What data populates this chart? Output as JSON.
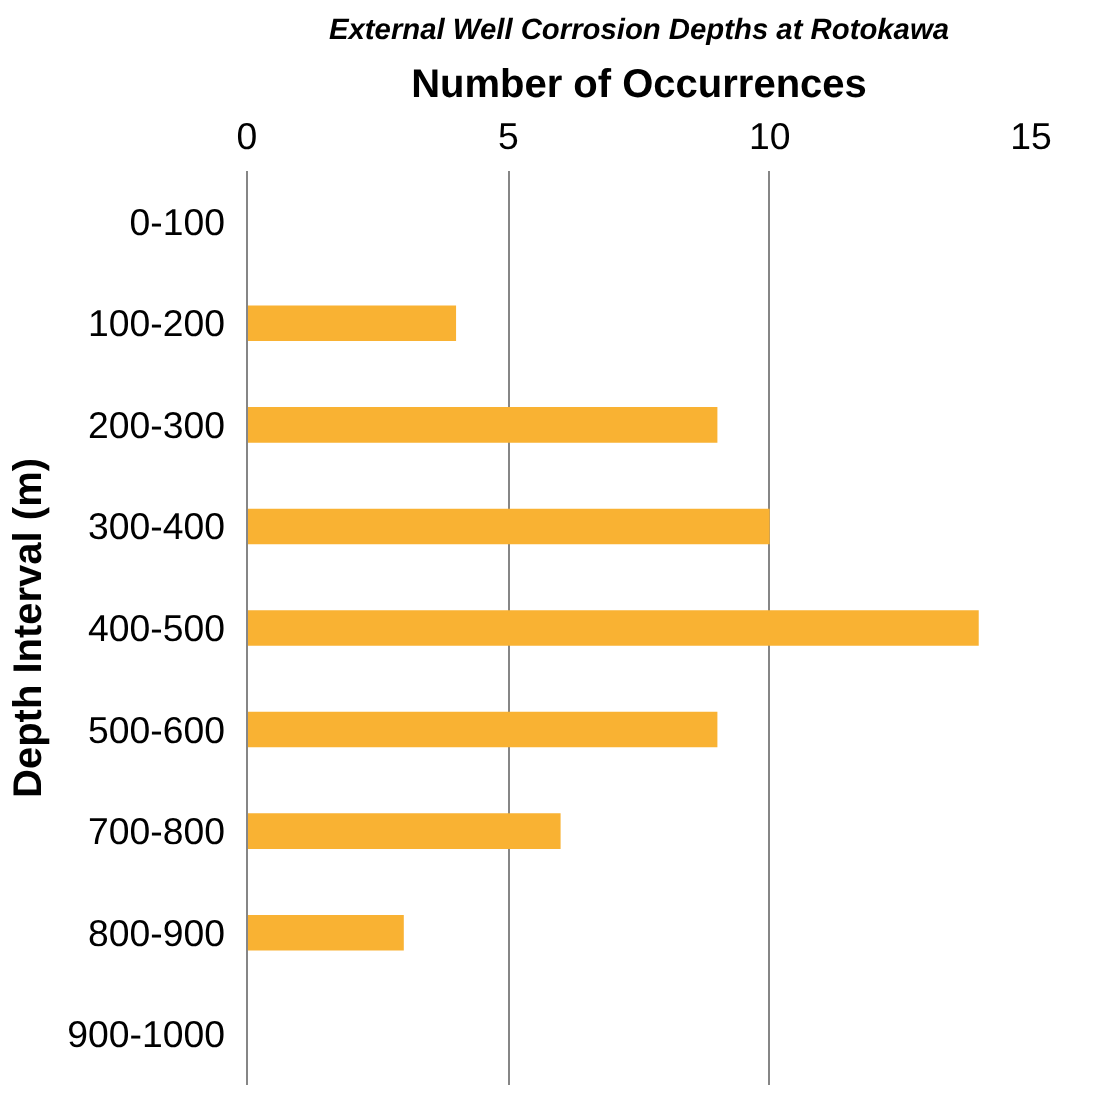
{
  "chart_data": {
    "type": "bar",
    "orientation": "horizontal",
    "title": "External Well Corrosion Depths at Rotokawa",
    "xlabel": "Number of Occurrences",
    "ylabel": "Depth Interval (m)",
    "categories": [
      "0-100",
      "100-200",
      "200-300",
      "300-400",
      "400-500",
      "500-600",
      "700-800",
      "800-900",
      "900-1000"
    ],
    "values": [
      0,
      4,
      9,
      10,
      14,
      9,
      6,
      3,
      0
    ],
    "color": "#f9b233",
    "xlim": [
      0,
      15
    ],
    "xticks": [
      0,
      5,
      10,
      15
    ],
    "grid": "x"
  }
}
